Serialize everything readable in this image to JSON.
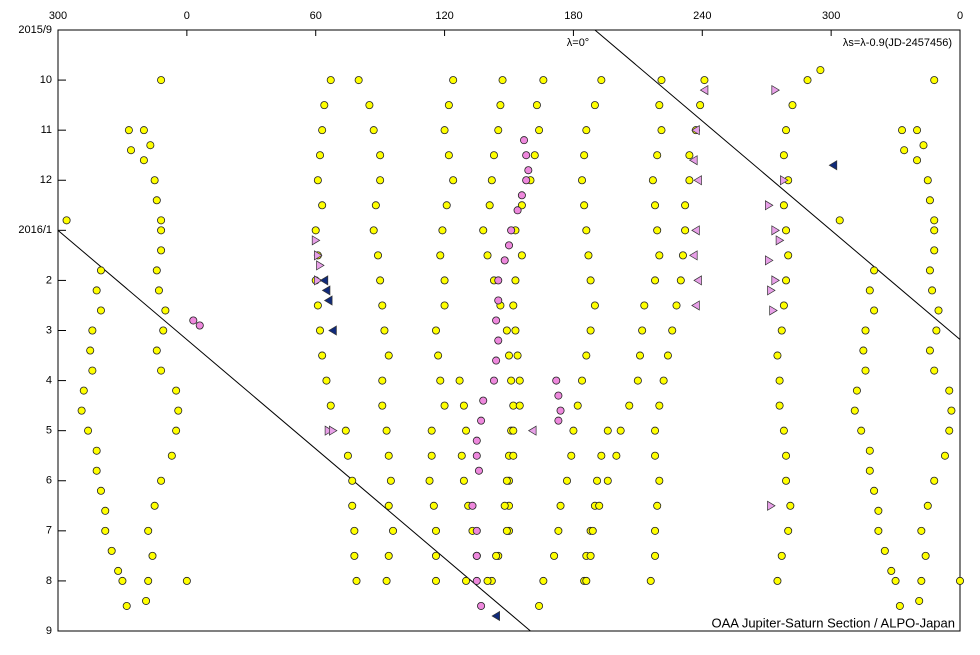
{
  "chart_data": {
    "type": "scatter",
    "annotations": [
      "λ=0°",
      "λs=λ-0.9(JD-2457456)",
      "OAA Jupiter-Saturn Section / ALPO-Japan"
    ],
    "xlim": [
      -60,
      360
    ],
    "xticks": [
      {
        "value": -60,
        "label": "300"
      },
      0,
      60,
      120,
      180,
      240,
      300,
      {
        "value": 360,
        "label": "0"
      }
    ],
    "ylim": [
      0,
      12
    ],
    "y_inverted": true,
    "yticks": [
      {
        "value": 0,
        "label": "2015/9"
      },
      {
        "value": 1,
        "label": "10"
      },
      {
        "value": 2,
        "label": "11"
      },
      {
        "value": 3,
        "label": "12"
      },
      {
        "value": 4,
        "label": "2016/1"
      },
      {
        "value": 5,
        "label": "2"
      },
      {
        "value": 6,
        "label": "3"
      },
      {
        "value": 7,
        "label": "4"
      },
      {
        "value": 8,
        "label": "5"
      },
      {
        "value": 9,
        "label": "6"
      },
      {
        "value": 10,
        "label": "7"
      },
      {
        "value": 11,
        "label": "8"
      },
      {
        "value": 12,
        "label": "9"
      }
    ],
    "grid": false,
    "reference_lines": [
      {
        "x": [
          -60,
          160
        ],
        "y": [
          4,
          12
        ],
        "color": "#000000"
      },
      {
        "x": [
          190,
          360
        ],
        "y": [
          0,
          6.18
        ],
        "color": "#000000"
      }
    ],
    "series": [
      {
        "color": "#ffff00",
        "marker": "circle",
        "x": [
          67,
          64,
          63,
          62,
          61,
          63,
          60,
          61,
          60,
          61,
          62,
          63,
          65,
          67,
          74,
          75,
          77,
          77,
          78,
          78,
          79
        ],
        "y": [
          1,
          1.5,
          2,
          2.5,
          3,
          3.5,
          4,
          4.5,
          5,
          5.5,
          6,
          6.5,
          7,
          7.5,
          8,
          8.5,
          9,
          9.5,
          10,
          10.5,
          11
        ]
      },
      {
        "color": "#ffff00",
        "marker": "circle",
        "x": [
          80,
          85,
          87,
          90,
          90,
          88,
          87,
          89,
          90,
          91,
          92,
          94,
          91,
          91,
          93,
          94,
          95,
          94,
          96,
          94,
          93
        ],
        "y": [
          1,
          1.5,
          2,
          2.5,
          3,
          3.5,
          4,
          4.5,
          5,
          5.5,
          6,
          6.5,
          7,
          7.5,
          8,
          8.5,
          9,
          9.5,
          10,
          10.5,
          11
        ]
      },
      {
        "color": "#ffff00",
        "marker": "circle",
        "x": [
          124,
          122,
          120,
          122,
          124,
          121,
          119,
          118,
          120,
          120,
          116,
          117,
          118,
          120,
          114,
          114,
          113,
          115,
          116,
          116,
          116
        ],
        "y": [
          1,
          1.5,
          2,
          2.5,
          3,
          3.5,
          4,
          4.5,
          5,
          5.5,
          6,
          6.5,
          7,
          7.5,
          8,
          8.5,
          9,
          9.5,
          10,
          10.5,
          11
        ]
      },
      {
        "color": "#ffff00",
        "marker": "circle",
        "x": [
          127,
          129,
          130,
          128,
          129,
          131,
          133,
          135,
          130
        ],
        "y": [
          7,
          7.5,
          8,
          8.5,
          9,
          9.5,
          10,
          10.5,
          11
        ]
      },
      {
        "color": "#ffff00",
        "marker": "circle",
        "x": [
          147,
          146,
          145,
          143,
          142,
          141,
          138,
          140,
          143,
          146,
          149,
          150,
          151,
          152,
          151,
          150,
          150,
          150,
          150,
          145,
          142
        ],
        "y": [
          1,
          1.5,
          2,
          2.5,
          3,
          3.5,
          4,
          4.5,
          5,
          5.5,
          6,
          6.5,
          7,
          7.5,
          8,
          8.5,
          9,
          9.5,
          10,
          10.5,
          11
        ]
      },
      {
        "color": "#ffff00",
        "marker": "circle",
        "x": [
          166,
          163,
          164,
          162,
          160,
          156,
          153,
          156,
          153,
          152,
          153,
          154,
          155,
          155,
          152,
          152,
          149,
          148,
          149,
          144,
          140
        ],
        "y": [
          1,
          1.5,
          2,
          2.5,
          3,
          3.5,
          4,
          4.5,
          5,
          5.5,
          6,
          6.5,
          7,
          7.5,
          8,
          8.5,
          9,
          9.5,
          10,
          10.5,
          11
        ]
      },
      {
        "color": "#ffff00",
        "marker": "circle",
        "x": [
          193,
          190,
          186,
          185,
          184,
          185,
          186,
          187,
          188,
          190,
          188,
          186,
          184,
          182,
          180,
          179,
          177,
          174,
          173,
          171,
          166,
          164
        ],
        "y": [
          1,
          1.5,
          2,
          2.5,
          3,
          3.5,
          4,
          4.5,
          5,
          5.5,
          6,
          6.5,
          7,
          7.5,
          8,
          8.5,
          9,
          9.5,
          10,
          10.5,
          11,
          11.5
        ]
      },
      {
        "color": "#ffff00",
        "marker": "circle",
        "x": [
          196,
          193,
          191,
          190,
          188,
          186,
          185
        ],
        "y": [
          8,
          8.5,
          9,
          9.5,
          10,
          10.5,
          11
        ]
      },
      {
        "color": "#ffff00",
        "marker": "circle",
        "x": [
          221,
          220,
          221,
          219,
          217,
          218,
          219,
          220,
          218,
          213,
          212,
          211,
          210,
          206,
          202,
          200,
          196,
          192,
          189,
          188,
          186
        ],
        "y": [
          1,
          1.5,
          2,
          2.5,
          3,
          3.5,
          4,
          4.5,
          5,
          5.5,
          6,
          6.5,
          7,
          7.5,
          8,
          8.5,
          9,
          9.5,
          10,
          10.5,
          11
        ]
      },
      {
        "color": "#ffff00",
        "marker": "circle",
        "x": [
          241,
          239,
          237,
          234,
          234,
          232,
          232,
          231,
          230,
          228,
          226,
          224,
          222,
          220,
          218,
          218,
          220,
          219,
          218,
          218,
          216
        ],
        "y": [
          1,
          1.5,
          2,
          2.5,
          3,
          3.5,
          4,
          4.5,
          5,
          5.5,
          6,
          6.5,
          7,
          7.5,
          8,
          8.5,
          9,
          9.5,
          10,
          10.5,
          11
        ]
      },
      {
        "color": "#ffff00",
        "marker": "circle",
        "x": [
          295,
          289,
          282,
          279,
          278,
          280,
          278,
          279,
          280,
          279,
          278,
          277,
          275,
          276,
          276,
          278,
          279,
          279,
          281,
          280,
          277,
          275
        ],
        "y": [
          0.8,
          1,
          1.5,
          2,
          2.5,
          3,
          3.5,
          4,
          4.5,
          5,
          5.5,
          6,
          6.5,
          7,
          7.5,
          8,
          8.5,
          9,
          9.5,
          10,
          10.5,
          11
        ]
      },
      {
        "color": "#ffff00",
        "marker": "circle",
        "x": [
          -20,
          -17,
          -20,
          -15,
          -14,
          -12,
          -12,
          -12,
          -14,
          -13,
          -10,
          -11,
          -14,
          -12,
          -5,
          -4,
          -5,
          -7,
          -12,
          -15,
          -18,
          -16,
          -18,
          -19
        ],
        "y": [
          2,
          2.3,
          2.6,
          3,
          3.4,
          3.8,
          4,
          4.4,
          4.8,
          5.2,
          5.6,
          6,
          6.4,
          6.8,
          7.2,
          7.6,
          8,
          8.5,
          9,
          9.5,
          10,
          10.5,
          11,
          11.4
        ]
      },
      {
        "color": "#ffff00",
        "marker": "circle",
        "x": [
          340,
          343,
          340,
          345,
          346,
          348,
          348,
          348,
          346,
          347,
          350,
          349,
          346,
          348,
          355,
          356,
          355,
          353,
          348,
          345,
          342,
          344,
          342,
          341
        ],
        "y": [
          2,
          2.3,
          2.6,
          3,
          3.4,
          3.8,
          4,
          4.4,
          4.8,
          5.2,
          5.6,
          6,
          6.4,
          6.8,
          7.2,
          7.6,
          8,
          8.5,
          9,
          9.5,
          10,
          10.5,
          11,
          11.4
        ]
      },
      {
        "color": "#ffff00",
        "marker": "circle",
        "x": [
          -40,
          -42,
          -40,
          -44,
          -45,
          -44,
          -48,
          -49,
          -46,
          -42,
          -42,
          -40,
          -38,
          -38,
          -35,
          -32,
          -30,
          -28
        ],
        "y": [
          4.8,
          5.2,
          5.6,
          6,
          6.4,
          6.8,
          7.2,
          7.6,
          8,
          8.4,
          8.8,
          9.2,
          9.6,
          10,
          10.4,
          10.8,
          11,
          11.5
        ]
      },
      {
        "color": "#ffff00",
        "marker": "circle",
        "x": [
          320,
          318,
          320,
          316,
          315,
          316,
          312,
          311,
          314,
          318,
          318,
          320,
          322,
          322,
          325,
          328,
          330,
          332
        ],
        "y": [
          4.8,
          5.2,
          5.6,
          6,
          6.4,
          6.8,
          7.2,
          7.6,
          8,
          8.4,
          8.8,
          9.2,
          9.6,
          10,
          10.4,
          10.8,
          11,
          11.5
        ]
      },
      {
        "color": "#ffff00",
        "marker": "circle",
        "x": [
          -56,
          -27,
          -26,
          -12,
          0
        ],
        "y": [
          3.8,
          2,
          2.4,
          1,
          11
        ]
      },
      {
        "color": "#ffff00",
        "marker": "circle",
        "x": [
          304,
          333,
          334,
          348,
          360
        ],
        "y": [
          3.8,
          2,
          2.4,
          1,
          11
        ]
      },
      {
        "color": "#ee88dd",
        "marker": "circle",
        "x": [
          157,
          158,
          159,
          158,
          156,
          154,
          151,
          150,
          148,
          145,
          145,
          144,
          145,
          144,
          143,
          138,
          137,
          135,
          135,
          136,
          133,
          135,
          135,
          135,
          137
        ],
        "y": [
          2.2,
          2.5,
          2.8,
          3,
          3.3,
          3.6,
          4,
          4.3,
          4.6,
          5,
          5.4,
          5.8,
          6.2,
          6.6,
          7,
          7.4,
          7.8,
          8.2,
          8.5,
          8.8,
          9.5,
          10,
          10.5,
          11,
          11.5
        ]
      },
      {
        "color": "#ee88dd",
        "marker": "circle",
        "x": [
          3,
          6,
          172,
          173,
          174,
          173
        ],
        "y": [
          5.8,
          5.9,
          7,
          7.3,
          7.6,
          7.8
        ]
      },
      {
        "color": "#e8a0e8",
        "marker": "triangle-right",
        "x": [
          60,
          61,
          62,
          61,
          66,
          68,
          274,
          271,
          274,
          276,
          271,
          274,
          272,
          273,
          278,
          272
        ],
        "y": [
          4.2,
          4.5,
          4.7,
          5,
          8,
          8,
          1.2,
          3.5,
          4,
          4.2,
          4.6,
          5,
          5.2,
          5.6,
          3,
          9.5
        ]
      },
      {
        "color": "#e8a0e8",
        "marker": "triangle-left",
        "x": [
          241,
          237,
          236,
          238,
          237,
          236,
          238,
          237,
          161
        ],
        "y": [
          1.2,
          2,
          2.6,
          3,
          4,
          4.5,
          5,
          5.5,
          8
        ]
      },
      {
        "color": "#102a7a",
        "marker": "triangle-left",
        "x": [
          64,
          65,
          66,
          68,
          301,
          144
        ],
        "y": [
          5,
          5.2,
          5.4,
          6,
          2.7,
          11.7
        ]
      }
    ]
  }
}
